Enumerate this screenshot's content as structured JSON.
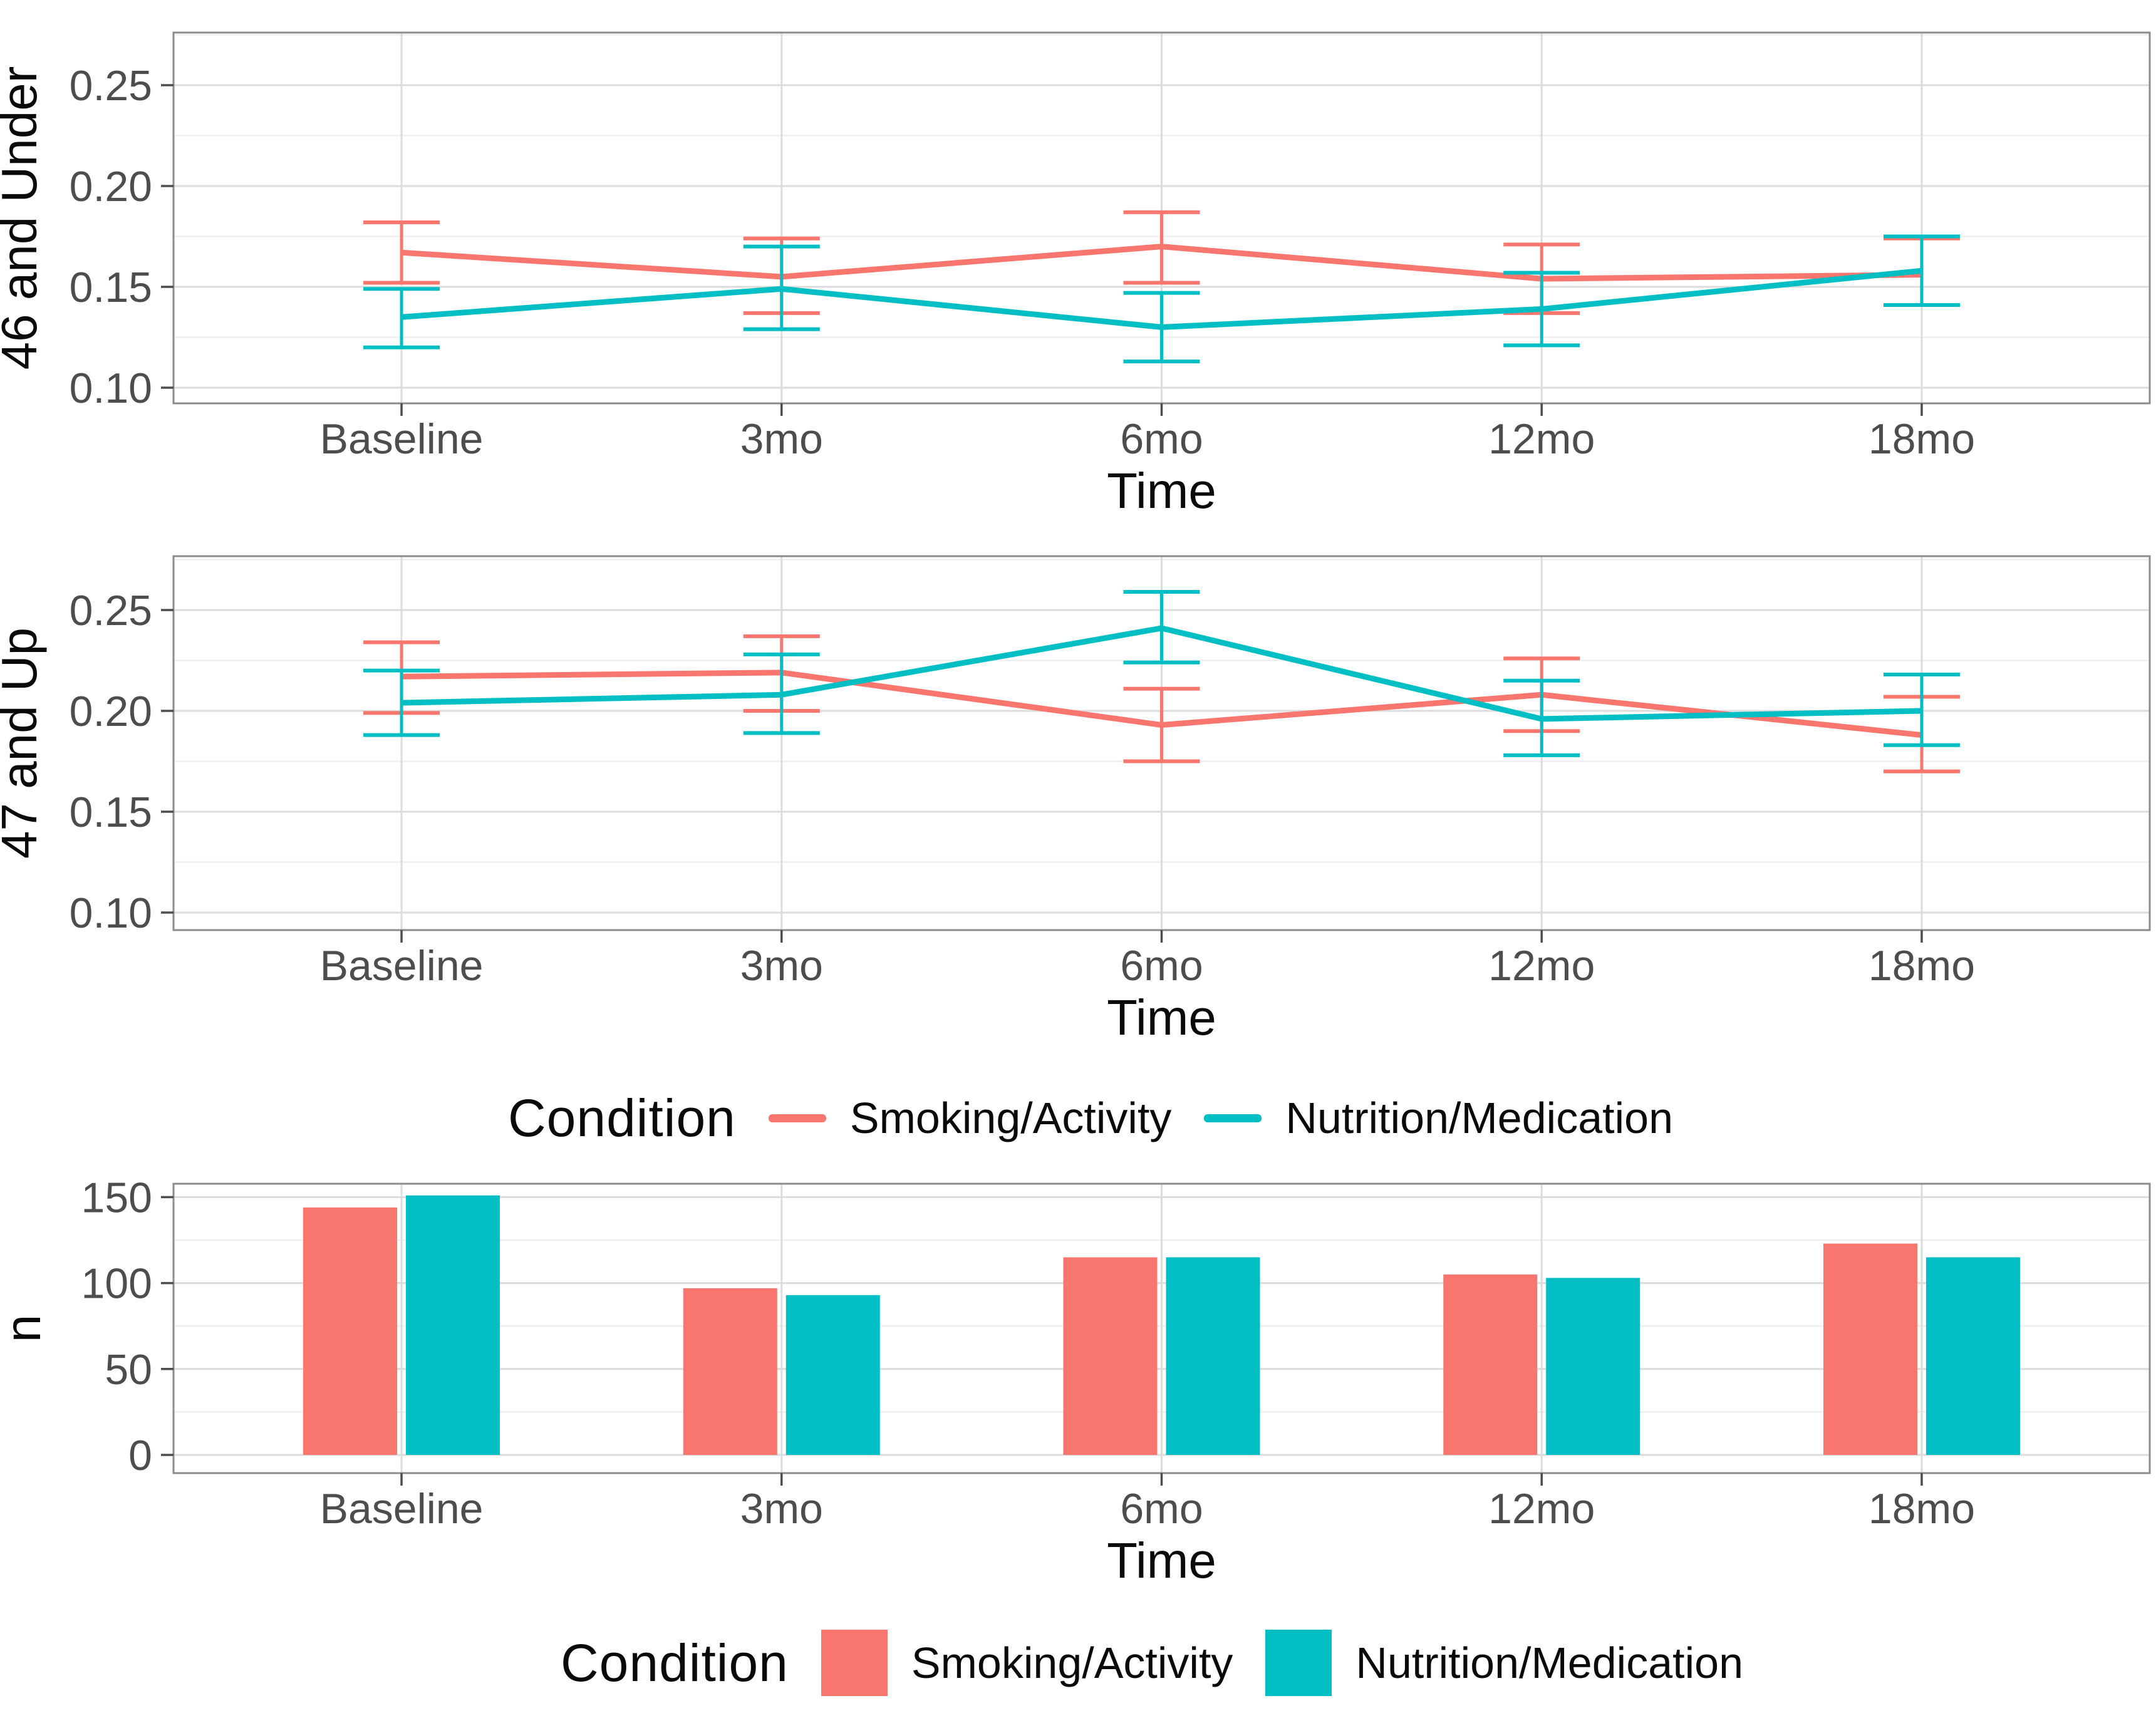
{
  "figure": {
    "background": "#ffffff",
    "colors": {
      "smoking_activity": "#F8766D",
      "nutrition_medication": "#00BFC4",
      "grid_major": "#DCDCDC",
      "grid_minor": "#EFEFEF",
      "panel_border": "#8C8C8C",
      "tick_mark": "#4D4D4D",
      "tick_text": "#4D4D4D",
      "title_text": "#0A0A0A"
    }
  },
  "chart_data": [
    {
      "type": "line",
      "panel_label": "46 and Under",
      "xlabel": "Time",
      "x_categories": [
        "Baseline",
        "3mo",
        "6mo",
        "12mo",
        "18mo"
      ],
      "y_ticks": [
        {
          "v": 0.1,
          "label": "0.10"
        },
        {
          "v": 0.15,
          "label": "0.15"
        },
        {
          "v": 0.2,
          "label": "0.20"
        },
        {
          "v": 0.25,
          "label": "0.25"
        }
      ],
      "y_minor_ticks": [
        0.125,
        0.175,
        0.225,
        0.275
      ],
      "ylim": [
        0.09,
        0.277
      ],
      "grid": true,
      "legend_position": "bottom",
      "series": [
        {
          "name": "Smoking/Activity",
          "color": "#F8766D",
          "values": [
            0.167,
            0.155,
            0.17,
            0.154,
            0.156
          ],
          "ci_low": [
            0.152,
            0.137,
            0.152,
            0.137,
            0.141
          ],
          "ci_high": [
            0.182,
            0.174,
            0.187,
            0.171,
            0.174
          ]
        },
        {
          "name": "Nutrition/Medication",
          "color": "#00BFC4",
          "values": [
            0.135,
            0.149,
            0.13,
            0.139,
            0.158
          ],
          "ci_low": [
            0.12,
            0.129,
            0.113,
            0.121,
            0.141
          ],
          "ci_high": [
            0.149,
            0.17,
            0.147,
            0.157,
            0.175
          ]
        }
      ]
    },
    {
      "type": "line",
      "panel_label": "47 and Up",
      "xlabel": "Time",
      "x_categories": [
        "Baseline",
        "3mo",
        "6mo",
        "12mo",
        "18mo"
      ],
      "y_ticks": [
        {
          "v": 0.1,
          "label": "0.10"
        },
        {
          "v": 0.15,
          "label": "0.15"
        },
        {
          "v": 0.2,
          "label": "0.20"
        },
        {
          "v": 0.25,
          "label": "0.25"
        }
      ],
      "y_minor_ticks": [
        0.125,
        0.175,
        0.225,
        0.275
      ],
      "ylim": [
        0.09,
        0.277
      ],
      "grid": true,
      "legend_position": "bottom",
      "series": [
        {
          "name": "Smoking/Activity",
          "color": "#F8766D",
          "values": [
            0.217,
            0.219,
            0.193,
            0.208,
            0.188
          ],
          "ci_low": [
            0.199,
            0.2,
            0.175,
            0.19,
            0.17
          ],
          "ci_high": [
            0.234,
            0.237,
            0.211,
            0.226,
            0.207
          ]
        },
        {
          "name": "Nutrition/Medication",
          "color": "#00BFC4",
          "values": [
            0.204,
            0.208,
            0.241,
            0.196,
            0.2
          ],
          "ci_low": [
            0.188,
            0.189,
            0.224,
            0.178,
            0.183
          ],
          "ci_high": [
            0.22,
            0.228,
            0.259,
            0.215,
            0.218
          ]
        }
      ]
    },
    {
      "type": "bar",
      "panel_label": "n",
      "xlabel": "Time",
      "x_categories": [
        "Baseline",
        "3mo",
        "6mo",
        "12mo",
        "18mo"
      ],
      "y_ticks": [
        {
          "v": 0,
          "label": "0"
        },
        {
          "v": 50,
          "label": "50"
        },
        {
          "v": 100,
          "label": "100"
        },
        {
          "v": 150,
          "label": "150"
        }
      ],
      "y_minor_ticks": [
        25,
        75,
        125
      ],
      "ylim": [
        0,
        157
      ],
      "grid": true,
      "series": [
        {
          "name": "Smoking/Activity",
          "color": "#F8766D",
          "values": [
            144,
            97,
            115,
            105,
            123
          ]
        },
        {
          "name": "Nutrition/Medication",
          "color": "#00BFC4",
          "values": [
            151,
            93,
            115,
            103,
            115
          ]
        }
      ]
    }
  ],
  "legends": [
    {
      "title": "Condition",
      "swatch": "line",
      "items": [
        {
          "label": "Smoking/Activity",
          "color": "#F8766D"
        },
        {
          "label": "Nutrition/Medication",
          "color": "#00BFC4"
        }
      ]
    },
    {
      "title": "Condition",
      "swatch": "square",
      "items": [
        {
          "label": "Smoking/Activity",
          "color": "#F8766D"
        },
        {
          "label": "Nutrition/Medication",
          "color": "#00BFC4"
        }
      ]
    }
  ]
}
